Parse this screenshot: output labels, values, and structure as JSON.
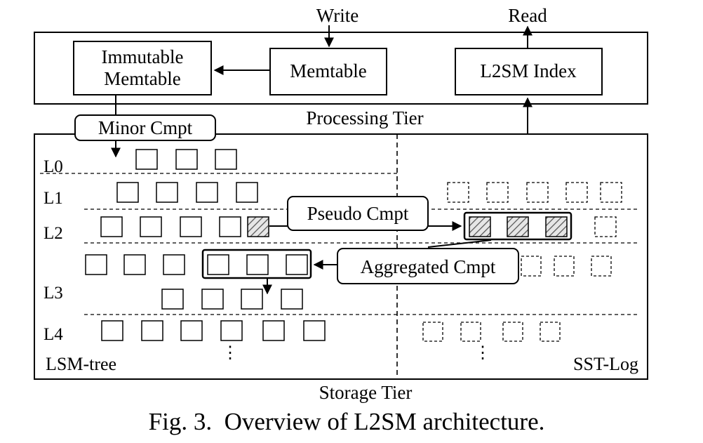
{
  "labels": {
    "write": "Write",
    "read": "Read",
    "immutable_memtable_line1": "Immutable",
    "immutable_memtable_line2": "Memtable",
    "memtable": "Memtable",
    "l2sm_index": "L2SM Index",
    "processing_tier": "Processing Tier",
    "minor_cmpt": "Minor Cmpt",
    "pseudo_cmpt": "Pseudo Cmpt",
    "aggregated_cmpt": "Aggregated Cmpt",
    "lsm_tree": "LSM-tree",
    "sst_log": "SST-Log",
    "storage_tier": "Storage Tier",
    "caption": "Fig. 3.  Overview of L2SM architecture."
  },
  "levels": [
    "L0",
    "L1",
    "L2",
    "L3",
    "L4"
  ],
  "ellipsis": "⋮",
  "colors": {
    "stroke": "#000000",
    "background": "#ffffff",
    "hatch": "#555555",
    "hatch_fill": "#e6e6e6"
  }
}
